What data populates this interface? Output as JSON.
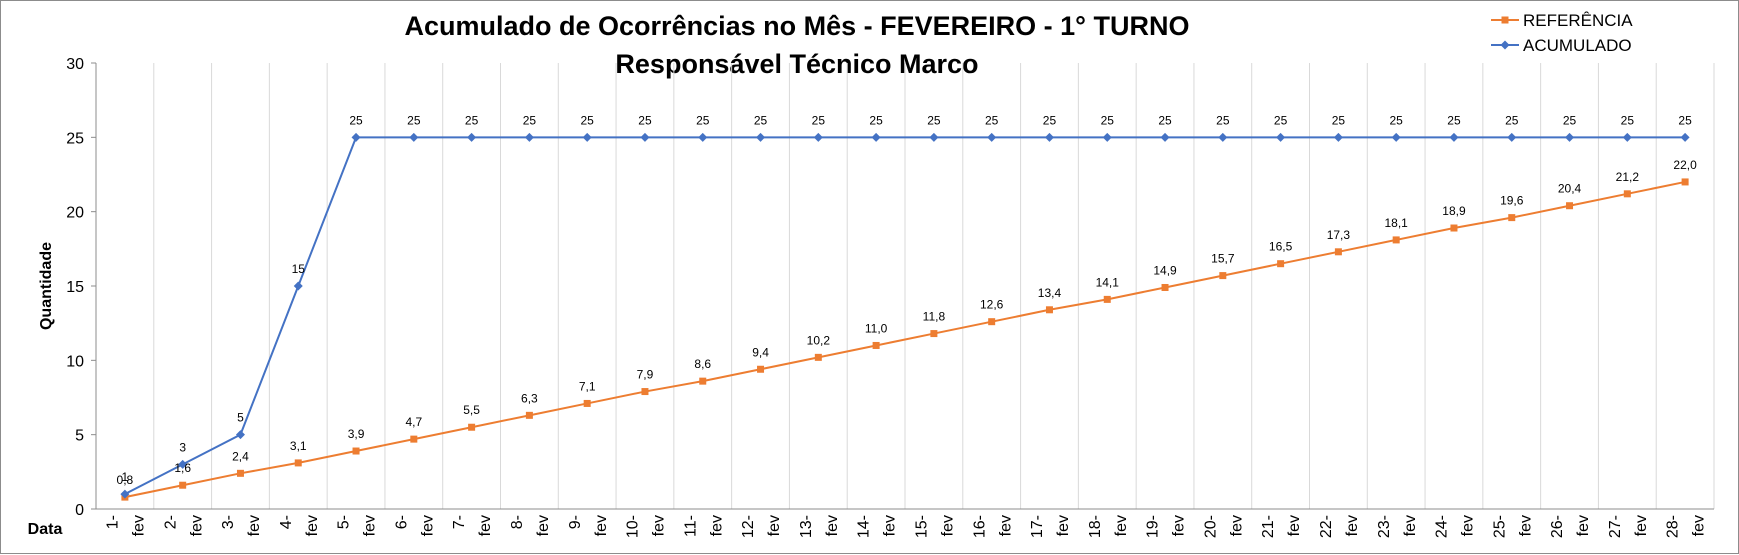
{
  "chart_data": {
    "type": "line",
    "title": "Acumulado de Ocorrências no Mês - FEVEREIRO - 1° TURNO",
    "subtitle": "Responsável Técnico Marco",
    "xlabel": "Data",
    "ylabel": "Quantidade",
    "ylim": [
      0,
      30
    ],
    "yticks": [
      "0",
      "5",
      "10",
      "15",
      "20",
      "25",
      "30"
    ],
    "grid": "vertical",
    "legend": "top-right",
    "categories": [
      "1-fev",
      "2-fev",
      "3-fev",
      "4-fev",
      "5-fev",
      "6-fev",
      "7-fev",
      "8-fev",
      "9-fev",
      "10-fev",
      "11-fev",
      "12-fev",
      "13-fev",
      "14-fev",
      "15-fev",
      "16-fev",
      "17-fev",
      "18-fev",
      "19-fev",
      "20-fev",
      "21-fev",
      "22-fev",
      "23-fev",
      "24-fev",
      "25-fev",
      "26-fev",
      "27-fev",
      "28-fev"
    ],
    "category_parts": [
      [
        "1-",
        "fev"
      ],
      [
        "2-",
        "fev"
      ],
      [
        "3-",
        "fev"
      ],
      [
        "4-",
        "fev"
      ],
      [
        "5-",
        "fev"
      ],
      [
        "6-",
        "fev"
      ],
      [
        "7-",
        "fev"
      ],
      [
        "8-",
        "fev"
      ],
      [
        "9-",
        "fev"
      ],
      [
        "10-",
        "fev"
      ],
      [
        "11-",
        "fev"
      ],
      [
        "12-",
        "fev"
      ],
      [
        "13-",
        "fev"
      ],
      [
        "14-",
        "fev"
      ],
      [
        "15-",
        "fev"
      ],
      [
        "16-",
        "fev"
      ],
      [
        "17-",
        "fev"
      ],
      [
        "18-",
        "fev"
      ],
      [
        "19-",
        "fev"
      ],
      [
        "20-",
        "fev"
      ],
      [
        "21-",
        "fev"
      ],
      [
        "22-",
        "fev"
      ],
      [
        "23-",
        "fev"
      ],
      [
        "24-",
        "fev"
      ],
      [
        "25-",
        "fev"
      ],
      [
        "26-",
        "fev"
      ],
      [
        "27-",
        "fev"
      ],
      [
        "28-",
        "fev"
      ]
    ],
    "series": [
      {
        "name": "REFERÊNCIA",
        "color": "#ed7d31",
        "marker": "square",
        "values": [
          0.8,
          1.6,
          2.4,
          3.1,
          3.9,
          4.7,
          5.5,
          6.3,
          7.1,
          7.9,
          8.6,
          9.4,
          10.2,
          11.0,
          11.8,
          12.6,
          13.4,
          14.1,
          14.9,
          15.7,
          16.5,
          17.3,
          18.1,
          18.9,
          19.6,
          20.4,
          21.2,
          22.0
        ],
        "labels": [
          "0,8",
          "1,6",
          "2,4",
          "3,1",
          "3,9",
          "4,7",
          "5,5",
          "6,3",
          "7,1",
          "7,9",
          "8,6",
          "9,4",
          "10,2",
          "11,0",
          "11,8",
          "12,6",
          "13,4",
          "14,1",
          "14,9",
          "15,7",
          "16,5",
          "17,3",
          "18,1",
          "18,9",
          "19,6",
          "20,4",
          "21,2",
          "22,0"
        ]
      },
      {
        "name": "ACUMULADO",
        "color": "#4472c4",
        "marker": "diamond",
        "values": [
          1,
          3,
          5,
          15,
          25,
          25,
          25,
          25,
          25,
          25,
          25,
          25,
          25,
          25,
          25,
          25,
          25,
          25,
          25,
          25,
          25,
          25,
          25,
          25,
          25,
          25,
          25,
          25
        ],
        "labels": [
          "1",
          "3",
          "5",
          "15",
          "25",
          "25",
          "25",
          "25",
          "25",
          "25",
          "25",
          "25",
          "25",
          "25",
          "25",
          "25",
          "25",
          "25",
          "25",
          "25",
          "25",
          "25",
          "25",
          "25",
          "25",
          "25",
          "25",
          "25"
        ]
      }
    ]
  }
}
